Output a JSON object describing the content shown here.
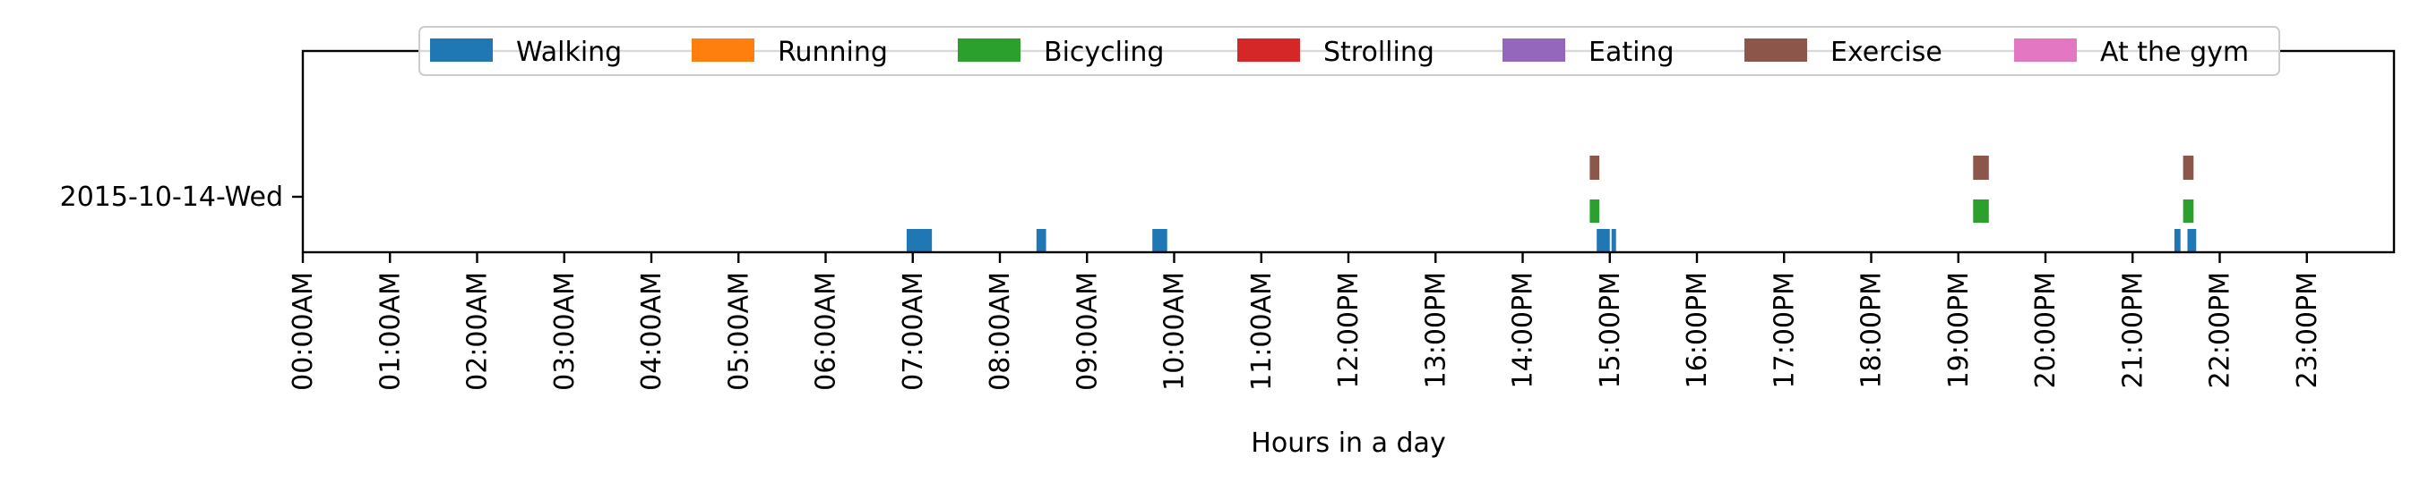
{
  "chart_data": {
    "type": "timeline",
    "title": "",
    "xlabel": "Hours in a day",
    "ylabel": "",
    "xlim": [
      0,
      24
    ],
    "x_ticks": [
      "00:00AM",
      "01:00AM",
      "02:00AM",
      "03:00AM",
      "04:00AM",
      "05:00AM",
      "06:00AM",
      "07:00AM",
      "08:00AM",
      "09:00AM",
      "10:00AM",
      "11:00AM",
      "12:00PM",
      "13:00PM",
      "14:00PM",
      "15:00PM",
      "16:00PM",
      "17:00PM",
      "18:00PM",
      "19:00PM",
      "20:00PM",
      "21:00PM",
      "22:00PM",
      "23:00PM"
    ],
    "y_categories": [
      "2015-10-14-Wed"
    ],
    "legend_position": "top-center",
    "grid": false,
    "series": [
      {
        "name": "Walking",
        "color": "#1f77b4",
        "intervals": [
          [
            6.93,
            7.22
          ],
          [
            8.42,
            8.53
          ],
          [
            9.75,
            9.92
          ],
          [
            14.85,
            15.0
          ],
          [
            15.02,
            15.05
          ],
          [
            21.48,
            21.55
          ],
          [
            21.63,
            21.73
          ]
        ]
      },
      {
        "name": "Running",
        "color": "#ff7f0e",
        "intervals": []
      },
      {
        "name": "Bicycling",
        "color": "#2ca02c",
        "intervals": [
          [
            14.77,
            14.88
          ],
          [
            19.17,
            19.35
          ],
          [
            21.58,
            21.7
          ]
        ]
      },
      {
        "name": "Strolling",
        "color": "#d62728",
        "intervals": []
      },
      {
        "name": "Eating",
        "color": "#9467bd",
        "intervals": []
      },
      {
        "name": "Exercise",
        "color": "#8c564b",
        "intervals": [
          [
            14.77,
            14.88
          ],
          [
            19.17,
            19.35
          ],
          [
            21.58,
            21.7
          ]
        ]
      },
      {
        "name": "At the gym",
        "color": "#e377c2",
        "intervals": []
      }
    ]
  }
}
